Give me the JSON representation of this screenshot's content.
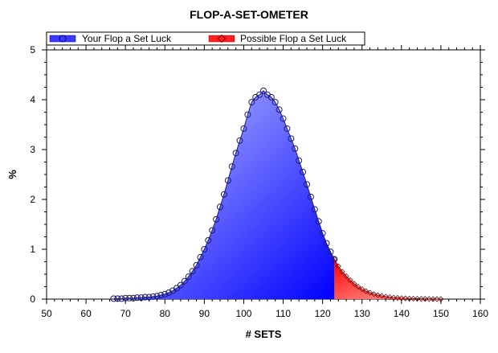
{
  "chart_data": {
    "type": "area",
    "title": "FLOP-A-SET-OMETER",
    "xlabel": "# SETS",
    "ylabel": "%",
    "xlim": [
      50,
      160
    ],
    "ylim": [
      0,
      5
    ],
    "x_ticks": [
      50,
      60,
      70,
      80,
      90,
      100,
      110,
      120,
      130,
      140,
      150,
      160
    ],
    "y_ticks": [
      0,
      1,
      2,
      3,
      4,
      5
    ],
    "grid": false,
    "legend_position": "top",
    "series": [
      {
        "name": "Your Flop a Set Luck",
        "color": "#1f1fff",
        "marker": "circle",
        "x": [
          67,
          68,
          69,
          70,
          71,
          72,
          73,
          74,
          75,
          76,
          77,
          78,
          79,
          80,
          81,
          82,
          83,
          84,
          85,
          86,
          87,
          88,
          89,
          90,
          91,
          92,
          93,
          94,
          95,
          96,
          97,
          98,
          99,
          100,
          101,
          102,
          103,
          104,
          105,
          106,
          107,
          108,
          109,
          110,
          111,
          112,
          113,
          114,
          115,
          116,
          117,
          118,
          119,
          120,
          121,
          122,
          123
        ],
        "values": [
          0.01,
          0.01,
          0.01,
          0.02,
          0.02,
          0.02,
          0.03,
          0.03,
          0.04,
          0.04,
          0.05,
          0.06,
          0.08,
          0.1,
          0.13,
          0.17,
          0.22,
          0.28,
          0.36,
          0.45,
          0.56,
          0.68,
          0.84,
          1.0,
          1.18,
          1.38,
          1.6,
          1.85,
          2.1,
          2.38,
          2.66,
          2.93,
          3.18,
          3.42,
          3.7,
          3.95,
          4.05,
          4.1,
          4.18,
          4.1,
          4.05,
          3.95,
          3.8,
          3.62,
          3.42,
          3.22,
          3.02,
          2.78,
          2.55,
          2.3,
          2.05,
          1.8,
          1.56,
          1.32,
          1.12,
          0.95,
          0.8
        ]
      },
      {
        "name": "Possible Flop a Set Luck",
        "color": "#ff2020",
        "marker": "diamond",
        "x": [
          123,
          124,
          125,
          126,
          127,
          128,
          129,
          130,
          131,
          132,
          133,
          134,
          135,
          136,
          137,
          138,
          139,
          140,
          141,
          142,
          143,
          144,
          145,
          146,
          147,
          148,
          149,
          150
        ],
        "values": [
          0.8,
          0.66,
          0.55,
          0.46,
          0.38,
          0.31,
          0.25,
          0.2,
          0.16,
          0.13,
          0.1,
          0.08,
          0.065,
          0.05,
          0.04,
          0.03,
          0.025,
          0.02,
          0.015,
          0.012,
          0.01,
          0.008,
          0.006,
          0.005,
          0.004,
          0.003,
          0.002,
          0.002
        ]
      }
    ]
  },
  "colors": {
    "blue_light": "#b3bcff",
    "blue_dark": "#0000ff",
    "red_light": "#ff9a9a",
    "red_dark": "#ff0000",
    "line": "#1a1a80"
  }
}
